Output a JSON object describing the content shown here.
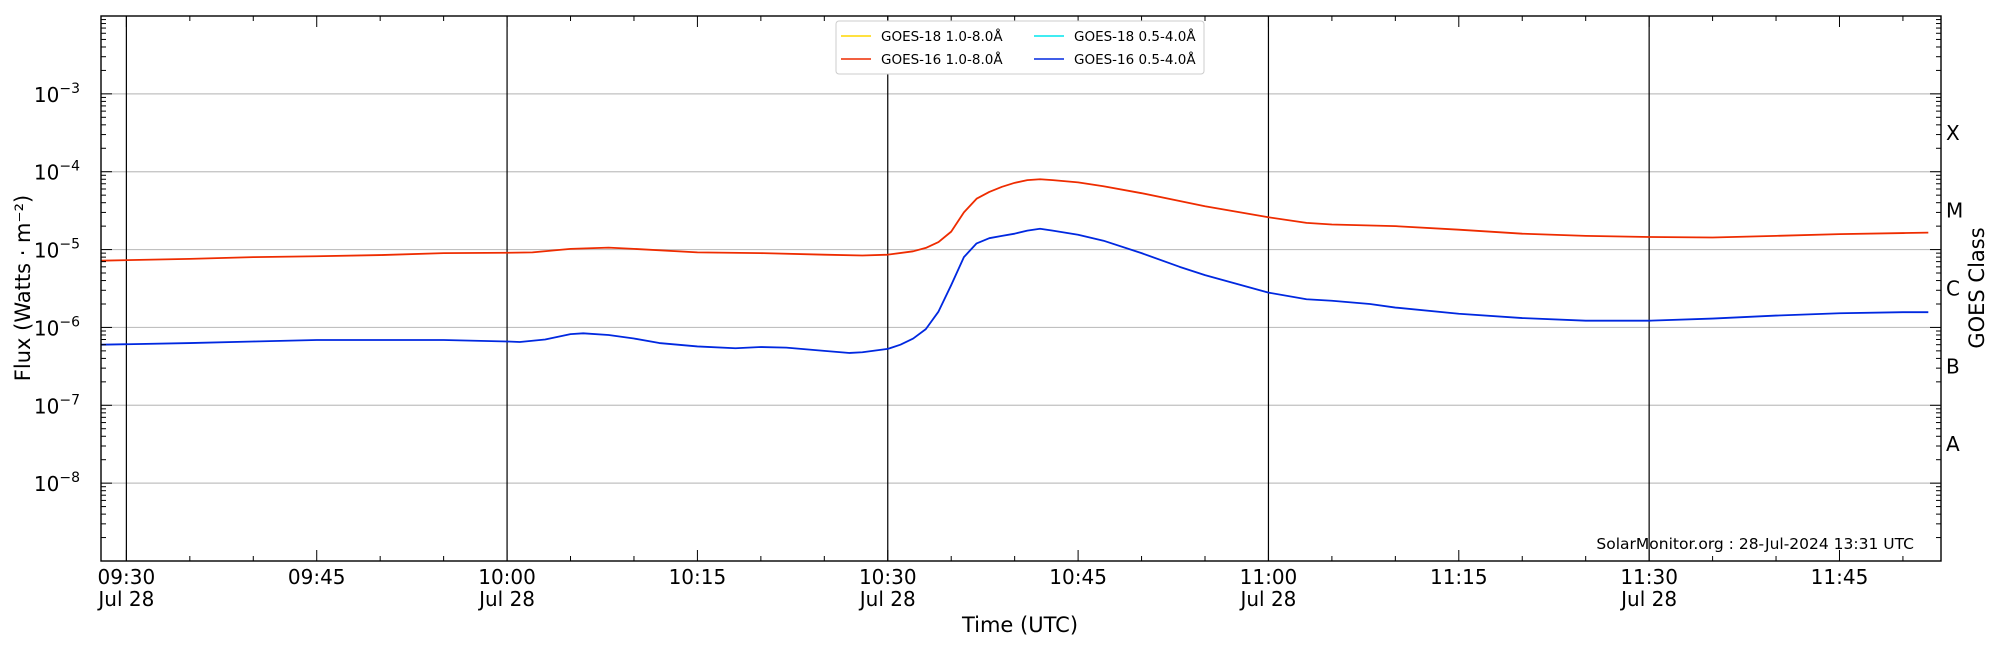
{
  "chart_data": {
    "type": "line",
    "xlabel": "Time (UTC)",
    "ylabel": "Flux (Watts · m⁻²)",
    "right_ylabel": "GOES Class",
    "y_scale": "log",
    "ylim": [
      1e-09,
      0.01
    ],
    "xlim": [
      "09:28",
      "11:53"
    ],
    "grid": "horizontal at decades, vertical at half-hours",
    "legend_position": "top-center",
    "watermark": "SolarMonitor.org : 28-Jul-2024 13:31 UTC",
    "x_ticks": [
      {
        "t": "09:30",
        "label": "09:30",
        "date": "Jul 28"
      },
      {
        "t": "09:45",
        "label": "09:45",
        "date": ""
      },
      {
        "t": "10:00",
        "label": "10:00",
        "date": "Jul 28"
      },
      {
        "t": "10:15",
        "label": "10:15",
        "date": ""
      },
      {
        "t": "10:30",
        "label": "10:30",
        "date": "Jul 28"
      },
      {
        "t": "10:45",
        "label": "10:45",
        "date": ""
      },
      {
        "t": "11:00",
        "label": "11:00",
        "date": "Jul 28"
      },
      {
        "t": "11:15",
        "label": "11:15",
        "date": ""
      },
      {
        "t": "11:30",
        "label": "11:30",
        "date": "Jul 28"
      },
      {
        "t": "11:45",
        "label": "11:45",
        "date": ""
      }
    ],
    "y_ticks": [
      {
        "value": 1e-08,
        "base": "10",
        "exp": "−8"
      },
      {
        "value": 1e-07,
        "base": "10",
        "exp": "−7"
      },
      {
        "value": 1e-06,
        "base": "10",
        "exp": "−6"
      },
      {
        "value": 1e-05,
        "base": "10",
        "exp": "−5"
      },
      {
        "value": 0.0001,
        "base": "10",
        "exp": "−4"
      },
      {
        "value": 0.001,
        "base": "10",
        "exp": "−3"
      }
    ],
    "goes_classes": [
      {
        "label": "A",
        "value": 3.16e-08
      },
      {
        "label": "B",
        "value": 3.16e-07
      },
      {
        "label": "C",
        "value": 3.16e-06
      },
      {
        "label": "M",
        "value": 3.16e-05
      },
      {
        "label": "X",
        "value": 0.000316
      }
    ],
    "series": [
      {
        "name": "GOES-18 1.0-8.0Å",
        "color": "#ffd700",
        "points": []
      },
      {
        "name": "GOES-18 0.5-4.0Å",
        "color": "#00e5ee",
        "points": []
      },
      {
        "name": "GOES-16 1.0-8.0Å",
        "color": "#ee2c00",
        "points": [
          [
            "09:28",
            7.2e-06
          ],
          [
            "09:35",
            7.6e-06
          ],
          [
            "09:40",
            8e-06
          ],
          [
            "09:45",
            8.2e-06
          ],
          [
            "09:50",
            8.5e-06
          ],
          [
            "09:55",
            9e-06
          ],
          [
            "10:00",
            9.1e-06
          ],
          [
            "10:02",
            9.2e-06
          ],
          [
            "10:05",
            1.02e-05
          ],
          [
            "10:08",
            1.06e-05
          ],
          [
            "10:10",
            1.02e-05
          ],
          [
            "10:15",
            9.2e-06
          ],
          [
            "10:20",
            9e-06
          ],
          [
            "10:25",
            8.6e-06
          ],
          [
            "10:28",
            8.4e-06
          ],
          [
            "10:30",
            8.6e-06
          ],
          [
            "10:32",
            9.5e-06
          ],
          [
            "10:33",
            1.05e-05
          ],
          [
            "10:34",
            1.25e-05
          ],
          [
            "10:35",
            1.7e-05
          ],
          [
            "10:36",
            3e-05
          ],
          [
            "10:37",
            4.5e-05
          ],
          [
            "10:38",
            5.5e-05
          ],
          [
            "10:39",
            6.4e-05
          ],
          [
            "10:40",
            7.2e-05
          ],
          [
            "10:41",
            7.8e-05
          ],
          [
            "10:42",
            8e-05
          ],
          [
            "10:43",
            7.8e-05
          ],
          [
            "10:45",
            7.3e-05
          ],
          [
            "10:47",
            6.5e-05
          ],
          [
            "10:50",
            5.3e-05
          ],
          [
            "10:53",
            4.2e-05
          ],
          [
            "10:55",
            3.6e-05
          ],
          [
            "11:00",
            2.6e-05
          ],
          [
            "11:03",
            2.2e-05
          ],
          [
            "11:05",
            2.1e-05
          ],
          [
            "11:10",
            2e-05
          ],
          [
            "11:15",
            1.8e-05
          ],
          [
            "11:20",
            1.6e-05
          ],
          [
            "11:25",
            1.5e-05
          ],
          [
            "11:30",
            1.45e-05
          ],
          [
            "11:35",
            1.43e-05
          ],
          [
            "11:40",
            1.5e-05
          ],
          [
            "11:45",
            1.58e-05
          ],
          [
            "11:50",
            1.63e-05
          ],
          [
            "11:52",
            1.65e-05
          ]
        ]
      },
      {
        "name": "GOES-16 0.5-4.0Å",
        "color": "#0028e0",
        "points": [
          [
            "09:28",
            6e-07
          ],
          [
            "09:35",
            6.3e-07
          ],
          [
            "09:40",
            6.6e-07
          ],
          [
            "09:45",
            6.9e-07
          ],
          [
            "09:50",
            6.9e-07
          ],
          [
            "09:55",
            6.9e-07
          ],
          [
            "10:00",
            6.6e-07
          ],
          [
            "10:01",
            6.5e-07
          ],
          [
            "10:03",
            7e-07
          ],
          [
            "10:05",
            8.2e-07
          ],
          [
            "10:06",
            8.4e-07
          ],
          [
            "10:08",
            8e-07
          ],
          [
            "10:10",
            7.2e-07
          ],
          [
            "10:12",
            6.3e-07
          ],
          [
            "10:15",
            5.7e-07
          ],
          [
            "10:18",
            5.4e-07
          ],
          [
            "10:20",
            5.6e-07
          ],
          [
            "10:22",
            5.5e-07
          ],
          [
            "10:25",
            5e-07
          ],
          [
            "10:27",
            4.7e-07
          ],
          [
            "10:28",
            4.8e-07
          ],
          [
            "10:30",
            5.3e-07
          ],
          [
            "10:31",
            6e-07
          ],
          [
            "10:32",
            7.2e-07
          ],
          [
            "10:33",
            9.5e-07
          ],
          [
            "10:34",
            1.6e-06
          ],
          [
            "10:35",
            3.5e-06
          ],
          [
            "10:36",
            8e-06
          ],
          [
            "10:37",
            1.2e-05
          ],
          [
            "10:38",
            1.4e-05
          ],
          [
            "10:39",
            1.5e-05
          ],
          [
            "10:40",
            1.6e-05
          ],
          [
            "10:41",
            1.75e-05
          ],
          [
            "10:42",
            1.85e-05
          ],
          [
            "10:43",
            1.75e-05
          ],
          [
            "10:45",
            1.55e-05
          ],
          [
            "10:47",
            1.3e-05
          ],
          [
            "10:50",
            9e-06
          ],
          [
            "10:53",
            6e-06
          ],
          [
            "10:55",
            4.7e-06
          ],
          [
            "11:00",
            2.8e-06
          ],
          [
            "11:03",
            2.3e-06
          ],
          [
            "11:05",
            2.2e-06
          ],
          [
            "11:08",
            2e-06
          ],
          [
            "11:10",
            1.8e-06
          ],
          [
            "11:15",
            1.5e-06
          ],
          [
            "11:20",
            1.32e-06
          ],
          [
            "11:25",
            1.22e-06
          ],
          [
            "11:30",
            1.22e-06
          ],
          [
            "11:35",
            1.3e-06
          ],
          [
            "11:40",
            1.42e-06
          ],
          [
            "11:45",
            1.52e-06
          ],
          [
            "11:50",
            1.57e-06
          ],
          [
            "11:52",
            1.57e-06
          ]
        ]
      }
    ]
  }
}
